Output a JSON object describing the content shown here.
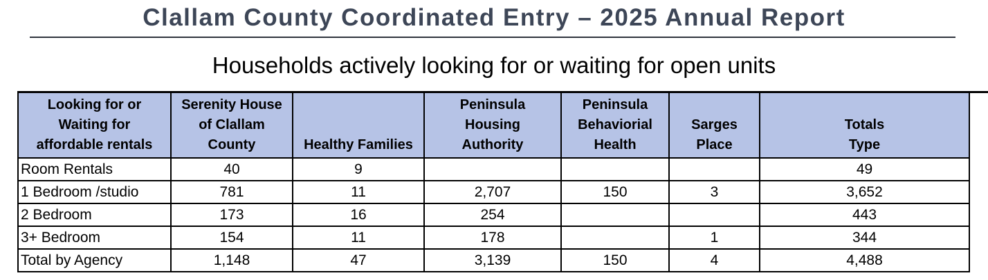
{
  "report": {
    "title": "Clallam County Coordinated Entry – 2025 Annual Report",
    "subtitle": "Households actively looking for or waiting for open units"
  },
  "colors": {
    "title_text": "#3d4657",
    "title_rule": "#2e333d",
    "table_header_bg": "#b6c3e6",
    "table_border": "#000000"
  },
  "table": {
    "columns": [
      {
        "id": "row-category",
        "label": "Looking for or\nWaiting for\naffordable rentals"
      },
      {
        "id": "serenity-house",
        "label": "Serenity House\nof Clallam\nCounty"
      },
      {
        "id": "healthy-families",
        "label": "Healthy Families"
      },
      {
        "id": "peninsula-housing-authority",
        "label": "Peninsula\nHousing\nAuthority"
      },
      {
        "id": "peninsula-behavioral-health",
        "label": "Peninsula\nBehaviorial\nHealth"
      },
      {
        "id": "sarges-place",
        "label": "Sarges\nPlace"
      },
      {
        "id": "totals-type",
        "label": "Totals\nType"
      }
    ],
    "rows": [
      {
        "label": "Room Rentals",
        "values": [
          "40",
          "9",
          "",
          "",
          "",
          "49"
        ]
      },
      {
        "label": "1 Bedroom /studio",
        "values": [
          "781",
          "11",
          "2,707",
          "150",
          "3",
          "3,652"
        ]
      },
      {
        "label": "2 Bedroom",
        "values": [
          "173",
          "16",
          "254",
          "",
          "",
          "443"
        ]
      },
      {
        "label": "3+ Bedroom",
        "values": [
          "154",
          "11",
          "178",
          "",
          "1",
          "344"
        ]
      },
      {
        "label": "Total by Agency",
        "values": [
          "1,148",
          "47",
          "3,139",
          "150",
          "4",
          "4,488"
        ]
      }
    ]
  }
}
